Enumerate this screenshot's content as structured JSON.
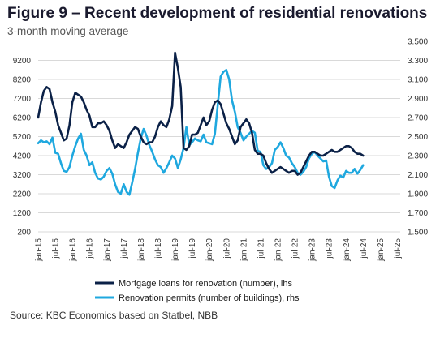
{
  "title": "Figure 9 – Recent development of residential renovations",
  "subtitle": "3-month moving average",
  "source": "Source: KBC Economics based on Statbel, NBB",
  "chart_data": {
    "type": "line",
    "x_ticks": [
      "jan-15",
      "jul-15",
      "jan-16",
      "jul-16",
      "jan-17",
      "jul-17",
      "jan-18",
      "jul-18",
      "jan-19",
      "jul-19",
      "jan-20",
      "jul-20",
      "jan-21",
      "jul-21",
      "jan-22",
      "jul-22",
      "jan-23",
      "jul-23",
      "jan-24",
      "jul-24",
      "jan-25",
      "jul-25"
    ],
    "y_left": {
      "ticks": [
        200,
        1200,
        2200,
        3200,
        4200,
        5200,
        6200,
        7200,
        8200,
        9200
      ],
      "min": 200,
      "max": 10200
    },
    "y_right": {
      "ticks": [
        "1.500",
        "1.700",
        "1.900",
        "2.100",
        "2.300",
        "2.500",
        "2.700",
        "2.900",
        "3.100",
        "3.300",
        "3.500"
      ],
      "min": 1500,
      "max": 3500
    },
    "grid": true,
    "legend_position": "bottom",
    "colors": {
      "mortgage": "#0b2147",
      "permits": "#1fa8df"
    },
    "series": [
      {
        "name": "Mortgage loans for renovation (number), lhs",
        "axis": "left",
        "start": "jan-15",
        "values": [
          6200,
          7000,
          7600,
          7800,
          7700,
          7000,
          6500,
          5800,
          5400,
          5000,
          5100,
          5800,
          7000,
          7500,
          7400,
          7300,
          7000,
          6600,
          6300,
          5700,
          5700,
          5900,
          5900,
          6000,
          5800,
          5500,
          5000,
          4600,
          4800,
          4700,
          4600,
          4900,
          5300,
          5500,
          5700,
          5600,
          5200,
          4900,
          4800,
          4900,
          4900,
          5200,
          5700,
          6000,
          5800,
          5700,
          6100,
          6800,
          9600,
          8800,
          7800,
          4600,
          4500,
          4700,
          5300,
          5300,
          5400,
          5800,
          6200,
          5800,
          6000,
          6600,
          7000,
          7100,
          6900,
          6400,
          5900,
          5600,
          5200,
          4800,
          5000,
          5700,
          5900,
          6100,
          5900,
          5400,
          4500,
          4300,
          4300,
          4200,
          3800,
          3500,
          3300,
          3400,
          3500,
          3600,
          3500,
          3400,
          3300,
          3400,
          3400,
          3200,
          3300,
          3600,
          3900,
          4200,
          4400,
          4400,
          4300,
          4200,
          4200,
          4300,
          4400,
          4500,
          4400,
          4400,
          4500,
          4600,
          4700,
          4700,
          4600,
          4400,
          4300,
          4300,
          4200
        ]
      },
      {
        "name": "Renovation permits (number of buildings), rhs",
        "axis": "right",
        "start": "jan-15",
        "values": [
          2430,
          2460,
          2440,
          2450,
          2420,
          2490,
          2330,
          2320,
          2220,
          2140,
          2130,
          2180,
          2300,
          2400,
          2480,
          2530,
          2360,
          2300,
          2200,
          2230,
          2120,
          2060,
          2050,
          2080,
          2140,
          2170,
          2110,
          2000,
          1920,
          1900,
          2000,
          1920,
          1890,
          2020,
          2160,
          2330,
          2480,
          2580,
          2510,
          2410,
          2340,
          2260,
          2200,
          2180,
          2120,
          2170,
          2230,
          2300,
          2270,
          2170,
          2260,
          2380,
          2600,
          2410,
          2440,
          2480,
          2460,
          2450,
          2520,
          2440,
          2430,
          2420,
          2530,
          2830,
          3130,
          3180,
          3200,
          3100,
          2880,
          2760,
          2600,
          2540,
          2460,
          2500,
          2530,
          2560,
          2540,
          2350,
          2340,
          2200,
          2160,
          2180,
          2220,
          2360,
          2390,
          2440,
          2380,
          2300,
          2280,
          2220,
          2180,
          2120,
          2100,
          2130,
          2180,
          2270,
          2320,
          2340,
          2300,
          2270,
          2240,
          2250,
          2080,
          1980,
          1960,
          2040,
          2090,
          2070,
          2140,
          2120,
          2120,
          2160,
          2110,
          2150,
          2200
        ]
      }
    ]
  }
}
